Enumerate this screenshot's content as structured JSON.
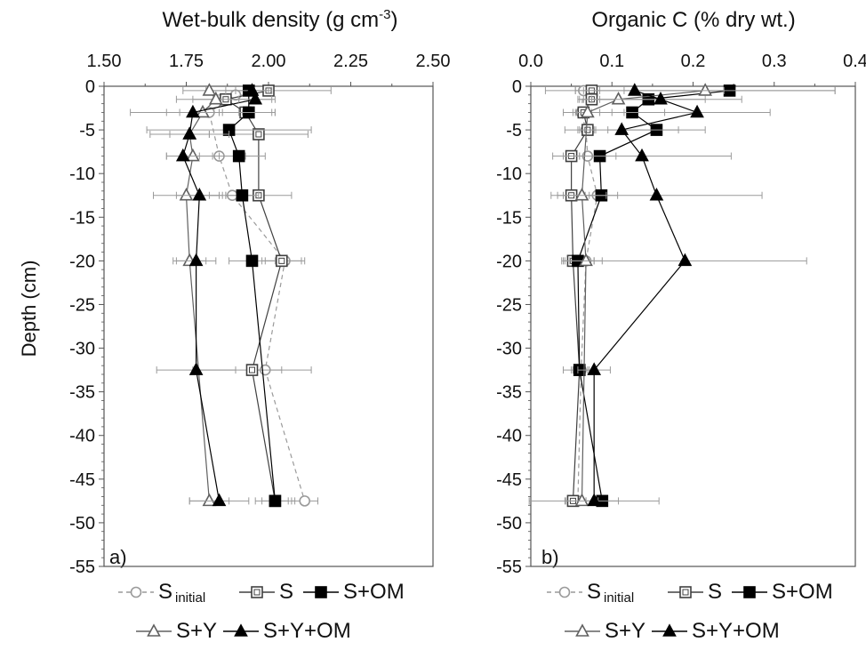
{
  "ylabel": "Depth (cm)",
  "legend": [
    {
      "key": "si",
      "label": "S",
      "sub": "initial",
      "row": 0
    },
    {
      "key": "s",
      "label": "S",
      "sub": "",
      "row": 0
    },
    {
      "key": "som",
      "label": "S+OM",
      "sub": "",
      "row": 0
    },
    {
      "key": "sy",
      "label": "S+Y",
      "sub": "",
      "row": 1
    },
    {
      "key": "syom",
      "label": "S+Y+OM",
      "sub": "",
      "row": 1
    }
  ],
  "series_style": {
    "si": {
      "marker": "circle",
      "fill": "#ffffff",
      "stroke": "#9a9a9a",
      "dash": "5,4"
    },
    "s": {
      "marker": "square-boxed",
      "fill": "#ffffff",
      "stroke": "#404040",
      "dash": ""
    },
    "som": {
      "marker": "square",
      "fill": "#000000",
      "stroke": "#000000",
      "dash": ""
    },
    "sy": {
      "marker": "triangle",
      "fill": "#ffffff",
      "stroke": "#606060",
      "dash": ""
    },
    "syom": {
      "marker": "triangle",
      "fill": "#000000",
      "stroke": "#000000",
      "dash": ""
    }
  },
  "chart_data": [
    {
      "type": "line",
      "panel_label": "a)",
      "title": "Wet-bulk density (g cm",
      "title_sup": "-3",
      "title_end": ")",
      "xlim": [
        1.5,
        2.5
      ],
      "xticks": [
        1.5,
        1.75,
        2.0,
        2.25,
        2.5
      ],
      "xtick_labels": [
        "1.50",
        "1.75",
        "2.00",
        "2.25",
        "2.50"
      ],
      "xlabel_position": "top",
      "ylim": [
        -55,
        0
      ],
      "yticks": [
        0,
        -5,
        -10,
        -15,
        -20,
        -25,
        -30,
        -35,
        -40,
        -45,
        -50,
        -55
      ],
      "series": [
        {
          "key": "si",
          "name": "S initial",
          "depth": [
            -1,
            -3,
            -8,
            -12.5,
            -20,
            -32.5,
            -47.5
          ],
          "values": [
            1.9,
            1.82,
            1.85,
            1.89,
            2.05,
            1.99,
            2.11
          ],
          "err": [
            0.06,
            0.09,
            0.08,
            0.07,
            0.06,
            0.05,
            0.04
          ]
        },
        {
          "key": "s",
          "name": "S",
          "depth": [
            -0.5,
            -1.5,
            -3,
            -5.5,
            -12.5,
            -20,
            -32.5,
            -47.5
          ],
          "values": [
            2.0,
            1.87,
            1.93,
            1.97,
            1.97,
            2.04,
            1.95,
            2.02
          ],
          "err": [
            0.19,
            0.15,
            0.08,
            0.15,
            0.1,
            0.06,
            0.18,
            0.04
          ]
        },
        {
          "key": "som",
          "name": "S+OM",
          "depth": [
            -0.5,
            -3,
            -5,
            -8,
            -12.5,
            -20,
            -47.5
          ],
          "values": [
            1.94,
            1.94,
            1.88,
            1.91,
            1.92,
            1.95,
            2.02
          ],
          "err": [
            0.07,
            0.08,
            0.25,
            0.08,
            0.05,
            0.07,
            0.06
          ]
        },
        {
          "key": "sy",
          "name": "S+Y",
          "depth": [
            -0.5,
            -1.5,
            -3,
            -5.5,
            -8,
            -12.5,
            -20,
            -47.5
          ],
          "values": [
            1.82,
            1.84,
            1.8,
            1.76,
            1.77,
            1.75,
            1.76,
            1.82
          ],
          "err": [
            0.08,
            0.07,
            0.22,
            0.12,
            0.08,
            0.1,
            0.05,
            0.06
          ]
        },
        {
          "key": "syom",
          "name": "S+Y+OM",
          "depth": [
            -0.5,
            -1.5,
            -3,
            -5.5,
            -8,
            -12.5,
            -20,
            -32.5,
            -47.5
          ],
          "values": [
            1.95,
            1.96,
            1.77,
            1.76,
            1.74,
            1.79,
            1.78,
            1.78,
            1.85
          ],
          "err": [
            0.05,
            0.05,
            0.08,
            0.06,
            0.05,
            0.07,
            0.06,
            0.12,
            0.09
          ]
        }
      ]
    },
    {
      "type": "line",
      "panel_label": "b)",
      "title": "Organic C (% dry wt.)",
      "title_sup": "",
      "title_end": "",
      "xlim": [
        0,
        0.4
      ],
      "xticks": [
        0,
        0.1,
        0.2,
        0.3,
        0.4
      ],
      "xtick_labels": [
        "0.0",
        "0.1",
        "0.2",
        "0.3",
        "0.4"
      ],
      "xlabel_position": "top",
      "ylim": [
        -55,
        0
      ],
      "yticks": [
        0,
        -5,
        -10,
        -15,
        -20,
        -25,
        -30,
        -35,
        -40,
        -45,
        -50,
        -55
      ],
      "series": [
        {
          "key": "si",
          "name": "S initial",
          "depth": [
            -0.5,
            -3,
            -5,
            -8,
            -12.5,
            -20,
            -32.5,
            -47.5
          ],
          "values": [
            0.065,
            0.062,
            0.068,
            0.07,
            0.082,
            0.068,
            0.062,
            0.058
          ],
          "err": [
            0.01,
            0.01,
            0.01,
            0.01,
            0.01,
            0.01,
            0.01,
            0.01
          ]
        },
        {
          "key": "s",
          "name": "S",
          "depth": [
            -0.5,
            -1.5,
            -3,
            -5,
            -8,
            -12.5,
            -20,
            -32.5,
            -47.5
          ],
          "values": [
            0.075,
            0.075,
            0.065,
            0.07,
            0.05,
            0.05,
            0.052,
            0.06,
            0.052
          ],
          "err": [
            0.01,
            0.01,
            0.01,
            0.01,
            0.01,
            0.01,
            0.01,
            0.01,
            0.01
          ]
        },
        {
          "key": "som",
          "name": "S+OM",
          "depth": [
            -0.5,
            -1.5,
            -3,
            -5,
            -8,
            -12.5,
            -20,
            -32.5,
            -47.5
          ],
          "values": [
            0.245,
            0.145,
            0.125,
            0.155,
            0.085,
            0.087,
            0.058,
            0.06,
            0.088
          ],
          "err": [
            0.13,
            0.07,
            0.04,
            0.06,
            0.02,
            0.02,
            0.02,
            0.02,
            0.02
          ]
        },
        {
          "key": "sy",
          "name": "S+Y",
          "depth": [
            -0.5,
            -1.5,
            -3,
            -12.5,
            -20,
            -47.5
          ],
          "values": [
            0.215,
            0.108,
            0.07,
            0.063,
            0.068,
            0.063
          ],
          "err": [
            0.16,
            0.05,
            0.03,
            0.03,
            0.02,
            0.02
          ]
        },
        {
          "key": "syom",
          "name": "S+Y+OM",
          "depth": [
            -0.5,
            -1.5,
            -3,
            -5,
            -8,
            -12.5,
            -20,
            -32.5,
            -47.5
          ],
          "values": [
            0.128,
            0.16,
            0.205,
            0.112,
            0.137,
            0.155,
            0.19,
            0.078,
            0.078
          ],
          "err": [
            0.11,
            0.1,
            0.09,
            0.07,
            0.11,
            0.13,
            0.15,
            0.02,
            0.08
          ]
        }
      ]
    }
  ]
}
